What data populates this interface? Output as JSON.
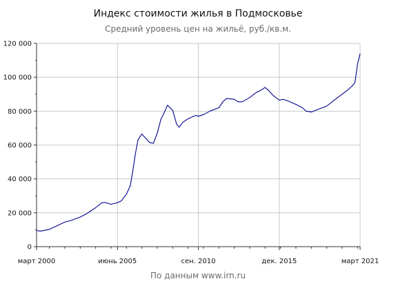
{
  "chart_data": {
    "type": "line",
    "title": "Индекс стоимости жилья в Подмосковье",
    "subtitle": "Средний уровень цен на жильё, руб./кв.м.",
    "xlabel": "",
    "ylabel": "",
    "ylim": [
      0,
      120000
    ],
    "y_ticks": [
      0,
      20000,
      40000,
      60000,
      80000,
      100000,
      120000
    ],
    "y_tick_labels": [
      "0",
      "20 000",
      "40 000",
      "60 000",
      "80 000",
      "100 000",
      "120 000"
    ],
    "x_range": [
      "2000-03",
      "2021-03"
    ],
    "x_ticks": [
      "2000-03",
      "2005-06",
      "2010-09",
      "2015-12",
      "2021-03"
    ],
    "x_tick_labels": [
      "март 2000",
      "июнь 2005",
      "сен. 2010",
      "дек. 2015",
      "март 2021"
    ],
    "grid": true,
    "legend": "none",
    "line_color": "#00008b",
    "series": [
      {
        "x": [
          "2000-03",
          "2000-06",
          "2001-01",
          "2001-06",
          "2002-01",
          "2002-06",
          "2003-01",
          "2003-06",
          "2004-01",
          "2004-06",
          "2004-09",
          "2005-01",
          "2005-06",
          "2005-09",
          "2006-01",
          "2006-04",
          "2006-06",
          "2006-08",
          "2006-10",
          "2007-01",
          "2007-04",
          "2007-07",
          "2007-10",
          "2008-01",
          "2008-04",
          "2008-06",
          "2008-09",
          "2009-01",
          "2009-04",
          "2009-06",
          "2009-09",
          "2010-01",
          "2010-04",
          "2010-07",
          "2010-09",
          "2011-01",
          "2011-06",
          "2012-01",
          "2012-04",
          "2012-07",
          "2013-01",
          "2013-04",
          "2013-07",
          "2014-01",
          "2014-06",
          "2014-09",
          "2015-01",
          "2015-04",
          "2015-07",
          "2015-12",
          "2016-03",
          "2016-07",
          "2017-01",
          "2017-06",
          "2017-09",
          "2018-01",
          "2018-06",
          "2019-01",
          "2019-06",
          "2020-01",
          "2020-06",
          "2020-09",
          "2020-11",
          "2021-01",
          "2021-03"
        ],
        "values": [
          9500,
          9200,
          10200,
          12000,
          14500,
          15500,
          17500,
          19500,
          23000,
          26000,
          26000,
          25000,
          26000,
          27000,
          31000,
          36000,
          45000,
          55000,
          63000,
          66500,
          64000,
          61500,
          61000,
          67000,
          75500,
          78500,
          83500,
          80500,
          72500,
          70500,
          73500,
          75500,
          76500,
          77500,
          77000,
          78000,
          80000,
          82000,
          85500,
          87500,
          87000,
          85500,
          85500,
          88000,
          91000,
          92000,
          94000,
          92000,
          89500,
          86500,
          87000,
          86000,
          84000,
          82000,
          80000,
          79500,
          81000,
          83000,
          86000,
          90000,
          93000,
          95000,
          97000,
          108000,
          114000
        ]
      }
    ]
  },
  "footer": {
    "source": "По данным www.irn.ru"
  }
}
